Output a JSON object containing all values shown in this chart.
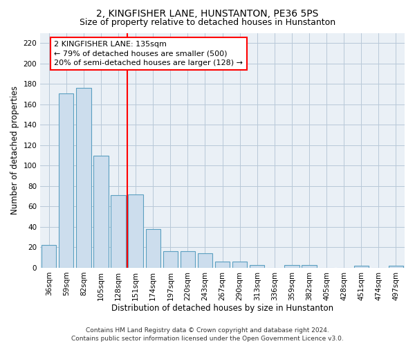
{
  "title": "2, KINGFISHER LANE, HUNSTANTON, PE36 5PS",
  "subtitle": "Size of property relative to detached houses in Hunstanton",
  "xlabel": "Distribution of detached houses by size in Hunstanton",
  "ylabel": "Number of detached properties",
  "categories": [
    "36sqm",
    "59sqm",
    "82sqm",
    "105sqm",
    "128sqm",
    "151sqm",
    "174sqm",
    "197sqm",
    "220sqm",
    "243sqm",
    "267sqm",
    "290sqm",
    "313sqm",
    "336sqm",
    "359sqm",
    "382sqm",
    "405sqm",
    "428sqm",
    "451sqm",
    "474sqm",
    "497sqm"
  ],
  "values": [
    22,
    171,
    176,
    110,
    71,
    72,
    38,
    16,
    16,
    14,
    6,
    6,
    3,
    0,
    3,
    3,
    0,
    0,
    2,
    0,
    2
  ],
  "bar_color": "#ccdded",
  "bar_edge_color": "#5a9fc0",
  "red_line_x": 4.5,
  "annotation_line1": "2 KINGFISHER LANE: 135sqm",
  "annotation_line2": "← 79% of detached houses are smaller (500)",
  "annotation_line3": "20% of semi-detached houses are larger (128) →",
  "annotation_box_color": "white",
  "annotation_box_edge": "red",
  "red_line_color": "red",
  "ylim": [
    0,
    230
  ],
  "yticks": [
    0,
    20,
    40,
    60,
    80,
    100,
    120,
    140,
    160,
    180,
    200,
    220
  ],
  "footer_line1": "Contains HM Land Registry data © Crown copyright and database right 2024.",
  "footer_line2": "Contains public sector information licensed under the Open Government Licence v3.0.",
  "bg_color": "#eaf0f6",
  "grid_color": "#b8c8d8",
  "title_fontsize": 10,
  "subtitle_fontsize": 9,
  "axis_label_fontsize": 8.5,
  "tick_fontsize": 7.5,
  "footer_fontsize": 6.5,
  "annotation_fontsize": 8
}
